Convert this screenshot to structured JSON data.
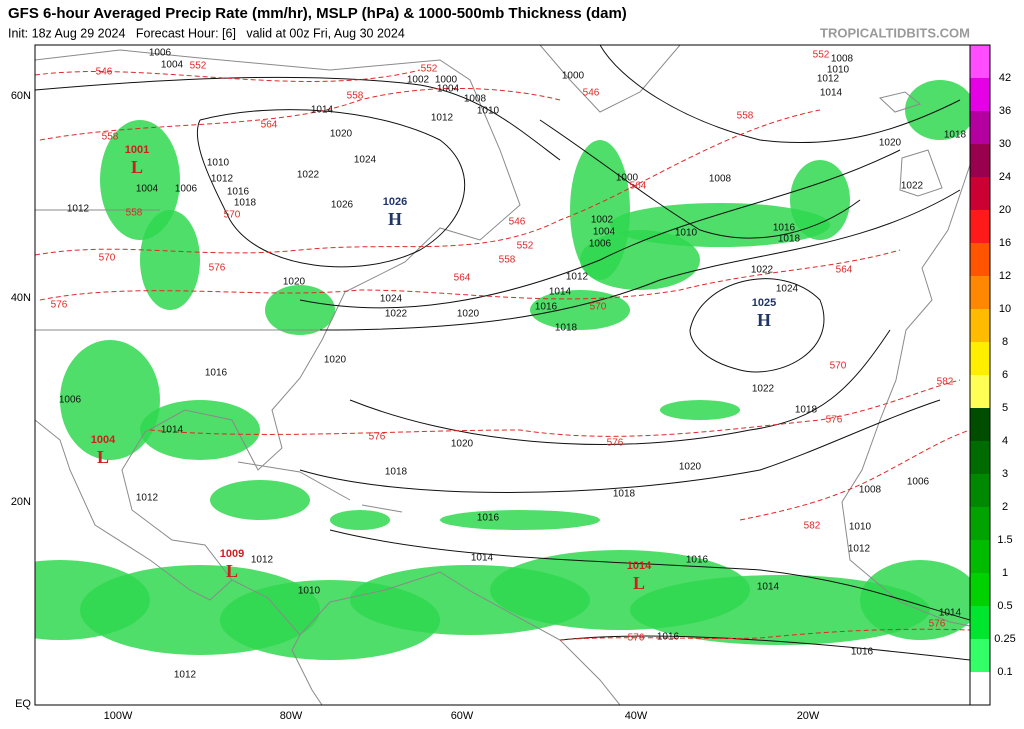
{
  "header": {
    "title": "GFS 6-hour Averaged Precip Rate (mm/hr), MSLP (hPa) & 1000-500mb Thickness (dam)",
    "subtitle": "Init: 18z Aug 29 2024   Forecast Hour: [6]   valid at 00z Fri, Aug 30 2024",
    "source": "TROPICALTIDBITS.COM"
  },
  "map": {
    "lat_labels": [
      "60N",
      "40N",
      "20N",
      "EQ"
    ],
    "lon_labels": [
      "100W",
      "80W",
      "60W",
      "40W",
      "20W"
    ],
    "isobar_color": "#111111",
    "thickness_color": "#e02828",
    "land_color": "#8a8a8a",
    "precip_color": "#2fd84f",
    "pressure_centers": [
      {
        "kind": "L",
        "value": "1001"
      },
      {
        "kind": "H",
        "value": "1026"
      },
      {
        "kind": "H",
        "value": "1025"
      },
      {
        "kind": "L",
        "value": "1004"
      },
      {
        "kind": "L",
        "value": "1009"
      },
      {
        "kind": "L",
        "value": "1014"
      }
    ],
    "isobar_labels": [
      "1006",
      "1004",
      "1002",
      "1000",
      "1004",
      "1000",
      "1008",
      "1010",
      "1012",
      "1014",
      "1008",
      "1010",
      "1014",
      "1012",
      "1020",
      "1024",
      "1022",
      "1010",
      "1012",
      "1016",
      "1018",
      "1004",
      "1012",
      "1006",
      "1026",
      "1000",
      "1008",
      "1020",
      "1018",
      "1022",
      "1002",
      "1004",
      "1006",
      "1010",
      "1016",
      "1018",
      "1022",
      "1024",
      "1012",
      "1014",
      "1016",
      "1018",
      "1020",
      "1024",
      "1022",
      "1020",
      "1020",
      "1016",
      "1006",
      "1014",
      "1022",
      "1018",
      "1020",
      "1020",
      "1018",
      "1018",
      "1016",
      "1012",
      "1008",
      "1006",
      "1010",
      "1012",
      "1014",
      "1016",
      "1010",
      "1014",
      "1014",
      "1016",
      "1016",
      "1012",
      "1012"
    ],
    "thickness_labels": [
      "546",
      "552",
      "552",
      "558",
      "564",
      "558",
      "552",
      "546",
      "558",
      "570",
      "558",
      "546",
      "552",
      "558",
      "564",
      "564",
      "570",
      "576",
      "576",
      "570",
      "564",
      "570",
      "582",
      "576",
      "576",
      "576",
      "582",
      "576",
      "576"
    ]
  },
  "colorbar": {
    "labels": [
      "42",
      "36",
      "30",
      "24",
      "20",
      "16",
      "12",
      "10",
      "8",
      "6",
      "5",
      "4",
      "3",
      "2",
      "1.5",
      "1",
      "0.5",
      "0.25",
      "0.1"
    ],
    "colors": [
      "#ff4dff",
      "#e600e6",
      "#b3009e",
      "#99004d",
      "#cc0033",
      "#ff1a1a",
      "#ff5500",
      "#ff8800",
      "#ffbb00",
      "#ffee00",
      "#ffff55",
      "#004d00",
      "#006b00",
      "#008800",
      "#00a300",
      "#00bb00",
      "#00d100",
      "#00e62e",
      "#33ff66",
      "#ffffff"
    ]
  }
}
